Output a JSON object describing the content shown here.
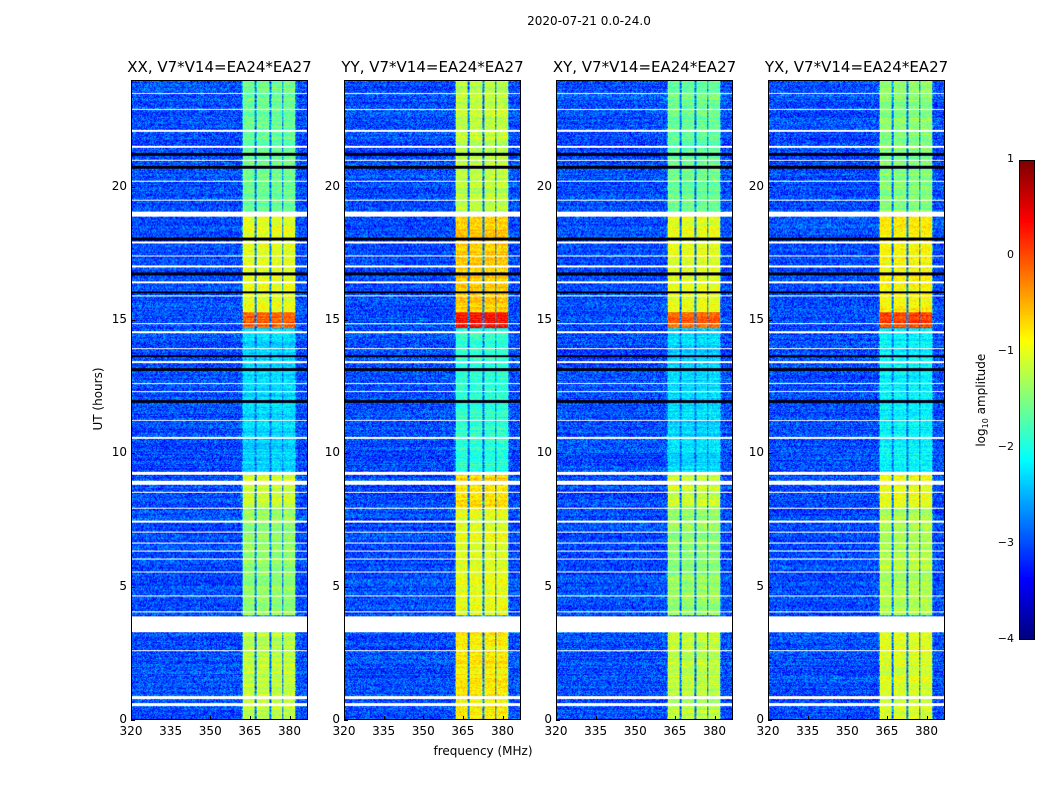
{
  "chart_data": {
    "type": "heatmap",
    "title": "2020-07-21 0.0-24.0",
    "xlabel": "frequency (MHz)",
    "ylabel": "UT (hours)",
    "xlim": [
      320,
      387
    ],
    "ylim": [
      0,
      24
    ],
    "xticks": [
      320,
      335,
      350,
      365,
      380
    ],
    "yticks": [
      0,
      5,
      10,
      15,
      20
    ],
    "panels": [
      {
        "title": "XX, V7*V14=EA24*EA27",
        "band_offset": 0.0
      },
      {
        "title": "YY, V7*V14=EA24*EA27",
        "band_offset": 0.4
      },
      {
        "title": "XY, V7*V14=EA24*EA27",
        "band_offset": 0.0
      },
      {
        "title": "YX, V7*V14=EA24*EA27",
        "band_offset": 0.15
      }
    ],
    "background_log_amplitude": -3.0,
    "bright_bands_mhz": [
      [
        362.3,
        367.0
      ],
      [
        367.6,
        372.6
      ],
      [
        373.2,
        377.5
      ],
      [
        378.1,
        382.6
      ]
    ],
    "band_segments": [
      {
        "hours": [
          0,
          3.3
        ],
        "log_amp": -1.2
      },
      {
        "hours": [
          3.9,
          8.0
        ],
        "log_amp": -1.4
      },
      {
        "hours": [
          8.0,
          9.3
        ],
        "log_amp": -1.1
      },
      {
        "hours": [
          9.3,
          14.7
        ],
        "log_amp": -2.3
      },
      {
        "hours": [
          14.7,
          15.3
        ],
        "log_amp": -0.1
      },
      {
        "hours": [
          15.3,
          19.0
        ],
        "log_amp": -1.0
      },
      {
        "hours": [
          19.0,
          24.0
        ],
        "log_amp": -1.6
      }
    ],
    "flagged_hours": [
      [
        0.5,
        0.6
      ],
      [
        0.75,
        0.85
      ],
      [
        2.55,
        2.6
      ],
      [
        3.26,
        3.86
      ],
      [
        4.0,
        4.05
      ],
      [
        4.6,
        4.65
      ],
      [
        5.5,
        5.55
      ],
      [
        6.0,
        6.05
      ],
      [
        6.3,
        6.35
      ],
      [
        6.6,
        6.65
      ],
      [
        7.0,
        7.05
      ],
      [
        7.4,
        7.45
      ],
      [
        7.9,
        7.95
      ],
      [
        8.5,
        8.55
      ],
      [
        8.8,
        8.95
      ],
      [
        9.2,
        9.3
      ],
      [
        10.55,
        10.6
      ],
      [
        11.2,
        11.25
      ],
      [
        12.3,
        12.35
      ],
      [
        12.6,
        12.65
      ],
      [
        13.4,
        13.45
      ],
      [
        13.9,
        13.95
      ],
      [
        14.5,
        14.6
      ],
      [
        14.85,
        14.9
      ],
      [
        15.9,
        15.95
      ],
      [
        16.4,
        16.45
      ],
      [
        17.0,
        17.05
      ],
      [
        17.4,
        17.45
      ],
      [
        17.9,
        17.95
      ],
      [
        18.9,
        19.1
      ],
      [
        19.5,
        19.55
      ],
      [
        20.2,
        20.25
      ],
      [
        21.0,
        21.05
      ],
      [
        21.5,
        21.55
      ],
      [
        22.1,
        22.15
      ],
      [
        22.9,
        22.95
      ],
      [
        23.5,
        23.55
      ]
    ],
    "dark_hours": [
      [
        11.9,
        12.0
      ],
      [
        13.1,
        13.2
      ],
      [
        13.6,
        13.7
      ],
      [
        16.0,
        16.1
      ],
      [
        16.7,
        16.8
      ],
      [
        18.0,
        18.1
      ],
      [
        20.7,
        20.8
      ],
      [
        21.2,
        21.3
      ]
    ],
    "colorbar": {
      "label_prefix": "log",
      "label_sub": "10",
      "label_suffix": " amplitude",
      "range": [
        -4,
        1
      ],
      "ticks": [
        "1",
        "0",
        "−1",
        "−2",
        "−3",
        "−4"
      ],
      "colormap": "jet"
    }
  }
}
